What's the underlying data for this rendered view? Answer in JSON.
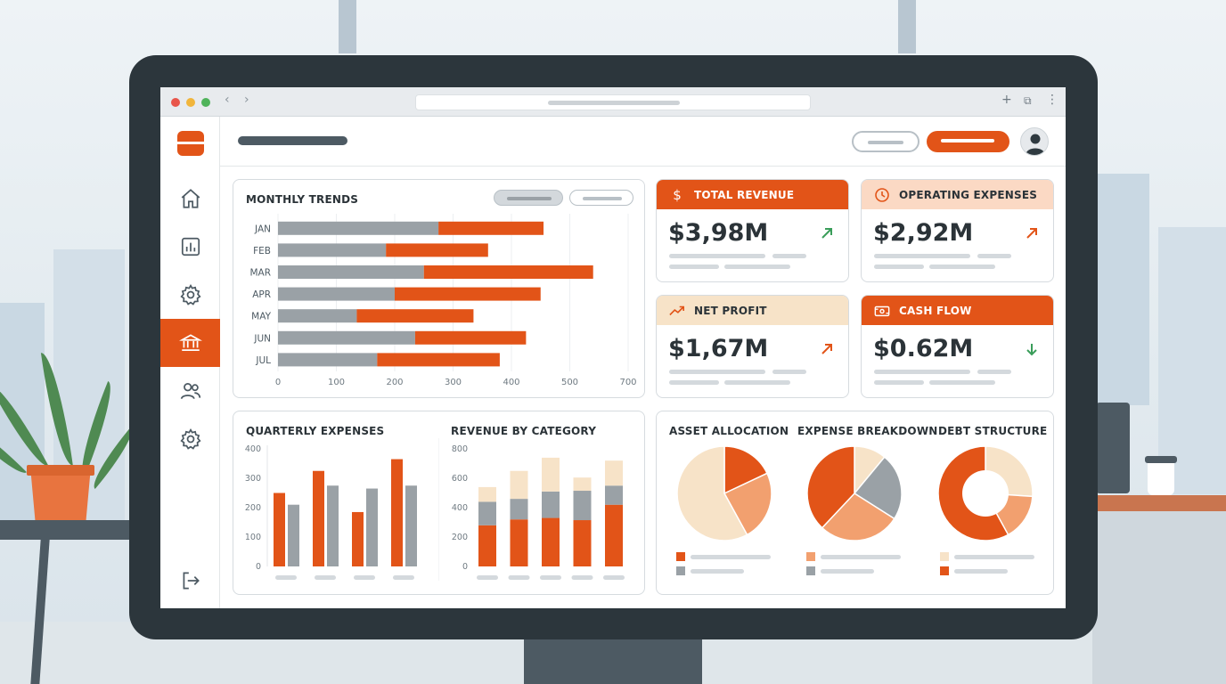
{
  "colors": {
    "accent": "#e25418",
    "accent_light": "#f2a06f",
    "cream": "#f7e3c8",
    "gray": "#9aa1a6",
    "dark": "#2b3338",
    "up_green": "#3a9d5a"
  },
  "sidebar": {
    "items": [
      {
        "icon": "home-icon"
      },
      {
        "icon": "chart-icon"
      },
      {
        "icon": "gear-icon"
      },
      {
        "icon": "bank-icon",
        "active": true
      },
      {
        "icon": "users-icon"
      },
      {
        "icon": "gear-icon"
      }
    ],
    "logout_icon": "logout-icon"
  },
  "monthly_trends": {
    "title": "MONTHLY TRENDS",
    "chart_data": {
      "type": "bar",
      "orientation": "horizontal",
      "stacked": true,
      "categories": [
        "JAN",
        "FEB",
        "MAR",
        "APR",
        "MAY",
        "JUN",
        "JUL"
      ],
      "series": [
        {
          "color": "#9aa1a6",
          "values": [
            275,
            185,
            250,
            200,
            135,
            235,
            170
          ]
        },
        {
          "color": "#e25418",
          "values": [
            180,
            175,
            290,
            250,
            200,
            190,
            210
          ]
        }
      ],
      "xticks": [
        "0",
        "100",
        "200",
        "300",
        "400",
        "500",
        "700"
      ],
      "xlim": [
        0,
        600
      ]
    }
  },
  "kpis": [
    {
      "label": "TOTAL REVENUE",
      "value": "$3,98M",
      "trend": "up",
      "theme": "dark",
      "icon": "dollar-icon"
    },
    {
      "label": "OPERATING EXPENSES",
      "value": "$2,92M",
      "trend": "up",
      "theme": "light",
      "icon": "clock-coin-icon"
    },
    {
      "label": "NET PROFIT",
      "value": "$1,67M",
      "trend": "up",
      "theme": "cream",
      "icon": "trend-up-icon"
    },
    {
      "label": "CASH FLOW",
      "value": "$0.62M",
      "trend": "down",
      "theme": "dark",
      "icon": "cash-icon"
    }
  ],
  "quarterly_expenses": {
    "title": "QUARTERLY EXPENSES",
    "chart_data": {
      "type": "bar",
      "yticks": [
        "0",
        "100",
        "200",
        "300",
        "400"
      ],
      "ylim": [
        0,
        400
      ],
      "series": [
        {
          "color": "#e25418",
          "values": [
            250,
            325,
            185,
            365
          ]
        },
        {
          "color": "#9aa1a6",
          "values": [
            210,
            275,
            265,
            275
          ]
        }
      ]
    }
  },
  "revenue_by_category": {
    "title": "REVENUE BY CATEGORY",
    "chart_data": {
      "type": "bar",
      "stacked": true,
      "yticks": [
        "0",
        "200",
        "400",
        "600",
        "800"
      ],
      "ylim": [
        0,
        800
      ],
      "series": [
        {
          "color": "#e25418",
          "values": [
            280,
            320,
            330,
            315,
            420
          ]
        },
        {
          "color": "#9aa1a6",
          "values": [
            160,
            140,
            180,
            200,
            130
          ]
        },
        {
          "color": "#f7e3c8",
          "values": [
            100,
            190,
            230,
            90,
            170
          ]
        }
      ]
    }
  },
  "pies": [
    {
      "title": "ASSET ALLOCATION",
      "chart_data": {
        "type": "pie",
        "values": [
          0.18,
          0.24,
          0.58
        ],
        "colors": [
          "#e25418",
          "#f2a06f",
          "#f7e3c8"
        ]
      },
      "legend_colors": [
        "#e25418",
        "#9aa1a6"
      ]
    },
    {
      "title": "EXPENSE BREAKDOWN",
      "chart_data": {
        "type": "pie",
        "values": [
          0.11,
          0.23,
          0.28,
          0.38
        ],
        "colors": [
          "#f7e3c8",
          "#9aa1a6",
          "#f2a06f",
          "#e25418"
        ]
      },
      "legend_colors": [
        "#f2a06f",
        "#9aa1a6"
      ]
    },
    {
      "title": "DEBT STRUCTURE",
      "chart_data": {
        "type": "pie",
        "donut": true,
        "values": [
          0.26,
          0.16,
          0.58
        ],
        "colors": [
          "#f7e3c8",
          "#f2a06f",
          "#e25418"
        ]
      },
      "legend_colors": [
        "#f7e3c8",
        "#e25418"
      ]
    }
  ]
}
